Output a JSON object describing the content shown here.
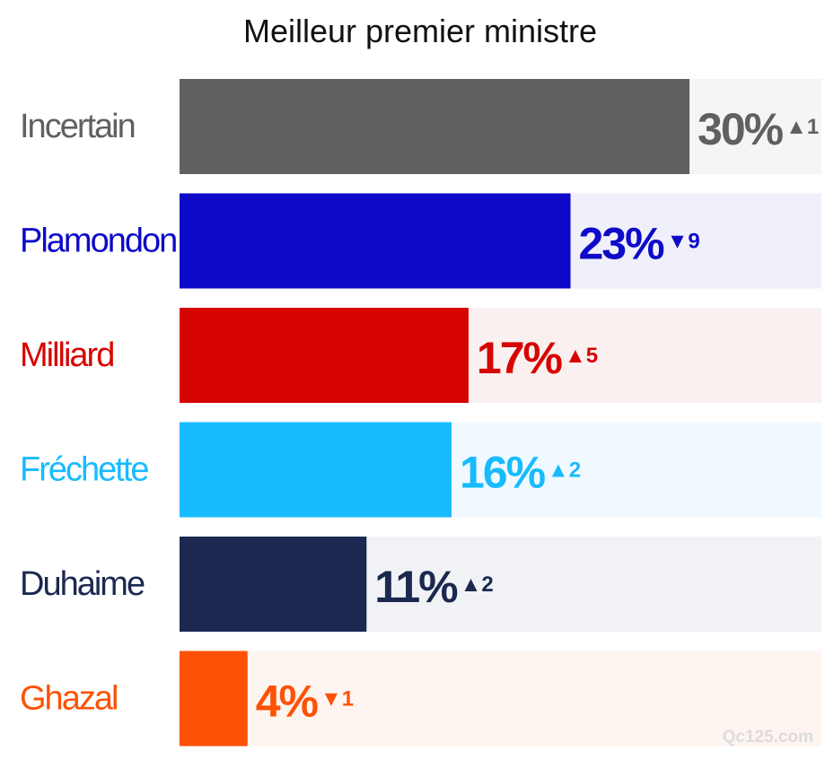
{
  "chart_data": {
    "type": "bar",
    "orientation": "horizontal",
    "title": "Meilleur premier ministre",
    "xlim": [
      0,
      40
    ],
    "unit": "%",
    "categories": [
      "Incertain",
      "Plamondon",
      "Milliard",
      "Fréchette",
      "Duhaime",
      "Ghazal"
    ],
    "values": [
      30,
      23,
      17,
      16,
      11,
      4
    ],
    "value_labels": [
      "30%",
      "23%",
      "17%",
      "16%",
      "11%",
      "4%"
    ],
    "changes": [
      {
        "direction": "up",
        "symbol": "▲",
        "amount": "1"
      },
      {
        "direction": "down",
        "symbol": "▼",
        "amount": "9"
      },
      {
        "direction": "up",
        "symbol": "▲",
        "amount": "5"
      },
      {
        "direction": "up",
        "symbol": "▲",
        "amount": "2"
      },
      {
        "direction": "up",
        "symbol": "▲",
        "amount": "2"
      },
      {
        "direction": "down",
        "symbol": "▼",
        "amount": "1"
      }
    ],
    "colors": [
      "#606060",
      "#0e0ac8",
      "#d60400",
      "#18bbfd",
      "#1b2850",
      "#fd5206"
    ],
    "track_colors": [
      "#f5f5f5",
      "#f0f0fa",
      "#faf0f0",
      "#f0f9ff",
      "#f1f2f5",
      "#fff5f0"
    ],
    "watermark": "Qc125.com"
  }
}
